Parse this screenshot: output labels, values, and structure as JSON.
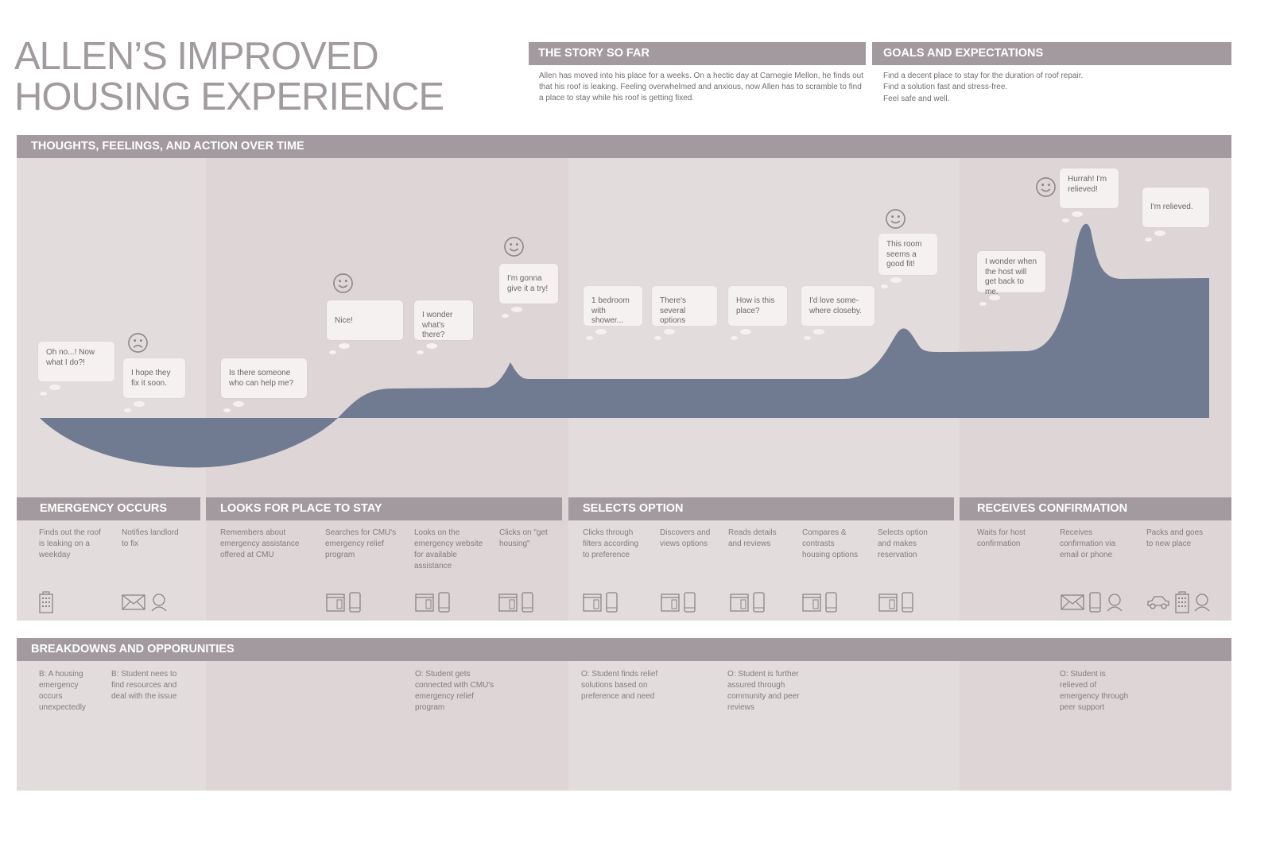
{
  "title": "ALLEN’S IMPROVED\nHOUSING EXPERIENCE",
  "story": {
    "heading": "THE STORY SO FAR",
    "text": "Allen has moved into his place for a weeks. On a hectic day at Carnegie Mellon, he finds out that his roof is leaking. Feeling overwhelmed and anxious, now Allen has to scramble to find a place to stay while his roof is getting fixed."
  },
  "goals": {
    "heading": "GOALS AND EXPECTATIONS",
    "items": [
      "Find a decent place to stay for the duration of roof repair.",
      "Find a solution fast and stress-free.",
      "Feel safe and well."
    ]
  },
  "timeline": {
    "heading": "THOUGHTS, FEELINGS, AND ACTION OVER TIME",
    "bubbles": [
      "Oh no...! Now what I do?!",
      "I hope they fix it soon.",
      "Is there someone who can help me?",
      "Nice!",
      "I wonder what's there?",
      "I'm gonna give it a try!",
      "1 bedroom with shower...",
      "There's several options",
      "How is this place?",
      "I'd love some-where closeby.",
      "This room seems a good fit!",
      "I wonder when the host will get back to me.",
      "Hurrah! I'm relieved!",
      "I'm relieved."
    ],
    "faces": [
      "sad",
      "happy",
      "happy",
      "happy",
      "happy"
    ]
  },
  "stages": [
    {
      "heading": "EMERGENCY OCCURS",
      "steps": [
        {
          "text": "Finds out the roof is leaking on a weekday",
          "icons": [
            "building-icon"
          ]
        },
        {
          "text": "Notifies landlord to fix",
          "icons": [
            "mail-icon",
            "person-icon"
          ]
        }
      ]
    },
    {
      "heading": "LOOKS FOR PLACE TO STAY",
      "steps": [
        {
          "text": "Remembers about emergency assistance offered at CMU",
          "icons": []
        },
        {
          "text": "Searches for CMU's emergency relief program",
          "icons": [
            "browser-icon",
            "phone-icon"
          ]
        },
        {
          "text": "Looks on the emergency website for available assistance",
          "icons": [
            "browser-icon",
            "phone-icon"
          ]
        },
        {
          "text": "Clicks on \"get housing\"",
          "icons": [
            "browser-icon",
            "phone-icon"
          ]
        }
      ]
    },
    {
      "heading": "SELECTS OPTION",
      "steps": [
        {
          "text": "Clicks through filters according to preference",
          "icons": [
            "browser-icon",
            "phone-icon"
          ]
        },
        {
          "text": "Discovers and views options",
          "icons": [
            "browser-icon",
            "phone-icon"
          ]
        },
        {
          "text": "Reads details and reviews",
          "icons": [
            "browser-icon",
            "phone-icon"
          ]
        },
        {
          "text": "Compares & contrasts housing options",
          "icons": [
            "browser-icon",
            "phone-icon"
          ]
        },
        {
          "text": "Selects option and makes reservation",
          "icons": [
            "browser-icon",
            "phone-icon"
          ]
        }
      ]
    },
    {
      "heading": "RECEIVES CONFIRMATION",
      "steps": [
        {
          "text": "Waits for host confirmation",
          "icons": []
        },
        {
          "text": "Receives confirmation via email or phone",
          "icons": [
            "mail-icon",
            "phone-icon",
            "person-icon"
          ]
        },
        {
          "text": "Packs and goes to new place",
          "icons": [
            "car-icon",
            "building-icon",
            "person-icon"
          ]
        }
      ]
    }
  ],
  "breakdowns": {
    "heading": "BREAKDOWNS AND OPPORUNITIES",
    "items": [
      "B: A housing emergency occurs unexpectedly",
      "B: Student nees to find resources and deal with the issue",
      "O: Student gets connected with CMU's emergency relief program",
      "O: Student finds relief solutions based on preference and need",
      "O: Student is further assured through community and peer reviews",
      "O: Student is relieved of emergency through peer support"
    ]
  },
  "colors": {
    "header_bar": "#a39a9f",
    "band_light": "#e3dcdd",
    "band_dark": "#ddd5d6",
    "curve": "#707a91",
    "title": "#a19a9f"
  }
}
